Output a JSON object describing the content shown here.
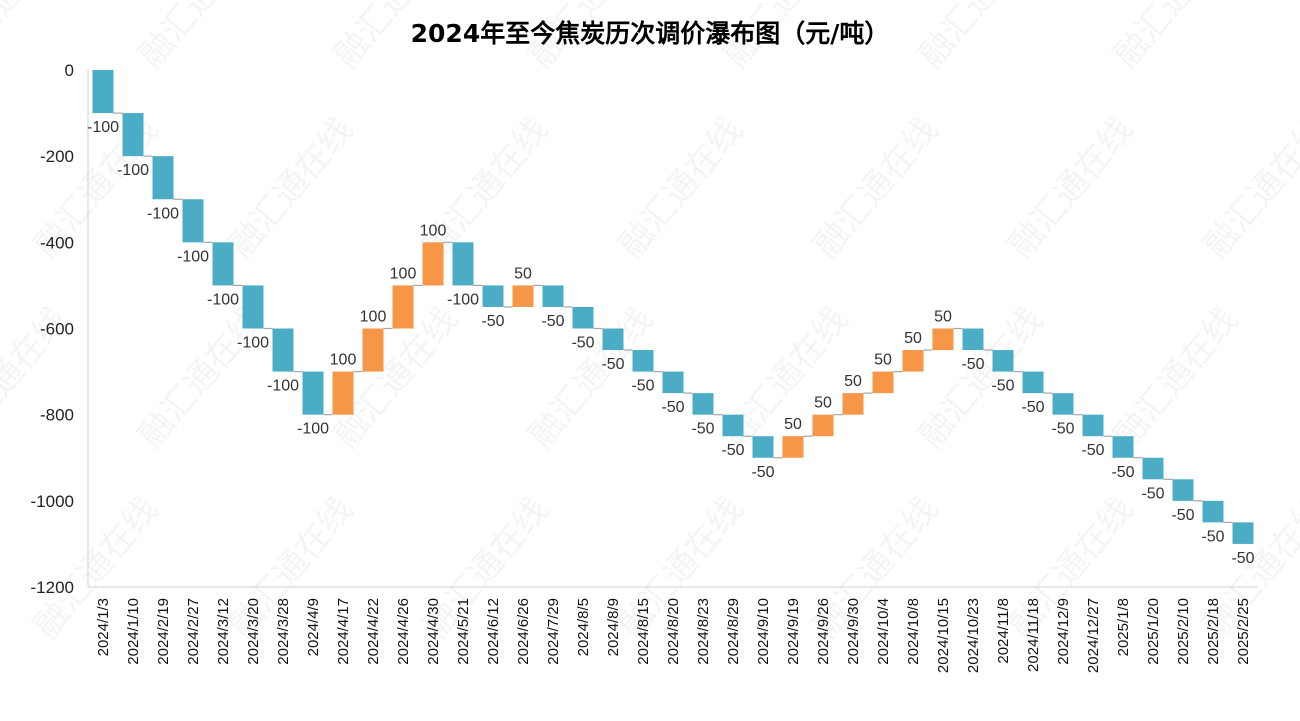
{
  "chart_data": {
    "type": "bar",
    "subtype": "waterfall",
    "title": "2024年至今焦炭历次调价瀑布图（元/吨）",
    "xlabel": "",
    "ylabel": "",
    "ylim": [
      -1200,
      0
    ],
    "yticks": [
      0,
      -200,
      -400,
      -600,
      -800,
      -1000,
      -1200
    ],
    "ytick_labels": [
      "0",
      "-200",
      "-400",
      "-600",
      "-800",
      "-1000",
      "-1200"
    ],
    "grid": false,
    "legend": "none",
    "colors": {
      "decrease": "#4BACC6",
      "increase": "#F79646",
      "connector": "#A6A6A6"
    },
    "categories": [
      "2024/1/3",
      "2024/1/10",
      "2024/2/19",
      "2024/2/27",
      "2024/3/12",
      "2024/3/20",
      "2024/3/28",
      "2024/4/9",
      "2024/4/17",
      "2024/4/22",
      "2024/4/26",
      "2024/4/30",
      "2024/5/21",
      "2024/6/12",
      "2024/6/26",
      "2024/7/29",
      "2024/8/5",
      "2024/8/9",
      "2024/8/15",
      "2024/8/20",
      "2024/8/23",
      "2024/8/29",
      "2024/9/10",
      "2024/9/19",
      "2024/9/26",
      "2024/9/30",
      "2024/10/4",
      "2024/10/8",
      "2024/10/15",
      "2024/10/23",
      "2024/11/8",
      "2024/11/18",
      "2024/12/9",
      "2024/12/27",
      "2025/1/8",
      "2025/1/20",
      "2025/2/10",
      "2025/2/18",
      "2025/2/25"
    ],
    "values": [
      -100,
      -100,
      -100,
      -100,
      -100,
      -100,
      -100,
      -100,
      100,
      100,
      100,
      100,
      -100,
      -50,
      50,
      -50,
      -50,
      -50,
      -50,
      -50,
      -50,
      -50,
      -50,
      50,
      50,
      50,
      50,
      50,
      50,
      -50,
      -50,
      -50,
      -50,
      -50,
      -50,
      -50,
      -50,
      -50,
      -50
    ],
    "value_labels": [
      "-100",
      "-100",
      "-100",
      "-100",
      "-100",
      "-100",
      "-100",
      "-100",
      "100",
      "100",
      "100",
      "100",
      "-100",
      "-50",
      "50",
      "-50",
      "-50",
      "-50",
      "-50",
      "-50",
      "-50",
      "-50",
      "-50",
      "50",
      "50",
      "50",
      "50",
      "50",
      "50",
      "-50",
      "-50",
      "-50",
      "-50",
      "-50",
      "-50",
      "-50",
      "-50",
      "-50",
      "-50"
    ],
    "watermark": "融汇通在线"
  }
}
